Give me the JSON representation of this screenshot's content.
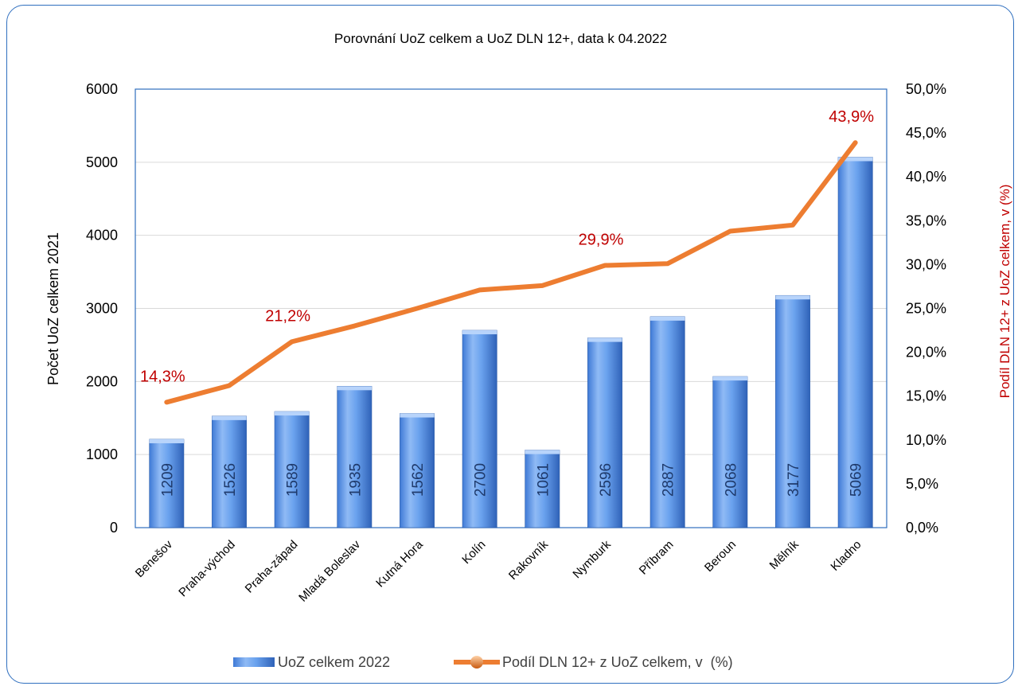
{
  "chart_data": {
    "type": "bar",
    "title": "Porovnání UoZ celkem a UoZ DLN 12+, data k 04.2022",
    "ylabel": "Počet UoZ celkem 2021",
    "y2label": "Podíl DLN 12+ z UoZ celkem, v (%)",
    "ylim": [
      0,
      6000
    ],
    "y2lim": [
      0,
      50
    ],
    "yticks": [
      "0",
      "1000",
      "2000",
      "3000",
      "4000",
      "5000",
      "6000"
    ],
    "y2ticks": [
      "0,0%",
      "5,0%",
      "10,0%",
      "15,0%",
      "20,0%",
      "25,0%",
      "30,0%",
      "35,0%",
      "40,0%",
      "45,0%",
      "50,0%"
    ],
    "grid": true,
    "legend_position": "bottom",
    "categories": [
      "Benešov",
      "Praha-východ",
      "Praha-západ",
      "Mladá Boleslav",
      "Kutná Hora",
      "Kolín",
      "Rakovník",
      "Nymburk",
      "Příbram",
      "Beroun",
      "Mělník",
      "Kladno"
    ],
    "series": [
      {
        "name": "UoZ celkem 2022",
        "type": "bar",
        "axis": "left",
        "color": "#4f8ee6",
        "values": [
          1209,
          1526,
          1589,
          1935,
          1562,
          2700,
          1061,
          2596,
          2887,
          2068,
          3177,
          5069
        ],
        "data_labels": [
          "1209",
          "1526",
          "1589",
          "1935",
          "1562",
          "2700",
          "1061",
          "2596",
          "2887",
          "2068",
          "3177",
          "5069"
        ]
      },
      {
        "name": "Podíl DLN 12+ z UoZ celkem, v  (%)",
        "type": "line",
        "axis": "right",
        "color": "#ed7d31",
        "values": [
          14.3,
          16.2,
          21.2,
          23.0,
          25.0,
          27.1,
          27.6,
          29.9,
          30.1,
          33.8,
          34.5,
          43.9
        ]
      }
    ],
    "annotations": [
      {
        "index": 0,
        "text": "14,3%",
        "color": "#c00000"
      },
      {
        "index": 2,
        "text": "21,2%",
        "color": "#c00000"
      },
      {
        "index": 7,
        "text": "29,9%",
        "color": "#c00000"
      },
      {
        "index": 11,
        "text": "43,9%",
        "color": "#c00000"
      }
    ]
  }
}
